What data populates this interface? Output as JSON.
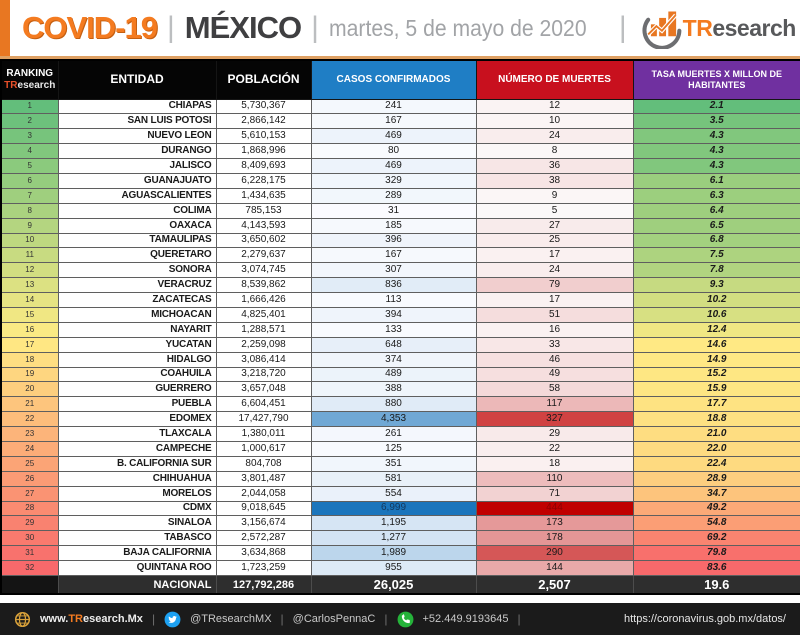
{
  "header": {
    "title": "COVID-19",
    "subtitle": "MÉXICO",
    "date": "martes, 5 de mayo de 2020",
    "separator": "|",
    "brand_prefix": "TR",
    "brand_suffix": "esearch",
    "accent_color": "#E87722"
  },
  "table": {
    "header": {
      "ranking_line1": "RANKING",
      "ranking_brand_prefix": "TR",
      "ranking_brand_suffix": "esearch",
      "entidad": "ENTIDAD",
      "poblacion": "POBLACIÓN",
      "casos": "CASOS CONFIRMADOS",
      "muertes": "NÚMERO DE MUERTES",
      "tasa": "TASA MUERTES X MILLON DE HABITANTES"
    },
    "header_colors": {
      "dark": "#050505",
      "casos_blue": "#1F7EC5",
      "muertes_red": "#C8101E",
      "tasa_purple": "#7030A0"
    },
    "rows": [
      {
        "rank": "1",
        "entidad": "CHIAPAS",
        "poblacion": "5,730,367",
        "casos": "241",
        "muertes": "12",
        "tasa": "2.1",
        "colors": {
          "rank": "#63BE7B",
          "casos": "#F4F8FD",
          "muertes": "#FAF3F3",
          "tasa": "#63BE7B"
        }
      },
      {
        "rank": "2",
        "entidad": "SAN LUIS POTOSI",
        "poblacion": "2,866,142",
        "casos": "167",
        "muertes": "10",
        "tasa": "3.5",
        "colors": {
          "rank": "#6DC17C",
          "casos": "#F6F9FD",
          "muertes": "#FBF5F5",
          "tasa": "#76C47C"
        }
      },
      {
        "rank": "3",
        "entidad": "NUEVO LEON",
        "poblacion": "5,610,153",
        "casos": "469",
        "muertes": "24",
        "tasa": "4.3",
        "colors": {
          "rank": "#77C47C",
          "casos": "#EDF3FB",
          "muertes": "#F9EDED",
          "tasa": "#81C77D"
        }
      },
      {
        "rank": "4",
        "entidad": "DURANGO",
        "poblacion": "1,868,996",
        "casos": "80",
        "muertes": "8",
        "tasa": "4.3",
        "colors": {
          "rank": "#81C77D",
          "casos": "#F9FBFE",
          "muertes": "#FBF7F7",
          "tasa": "#81C77D"
        }
      },
      {
        "rank": "5",
        "entidad": "JALISCO",
        "poblacion": "8,409,693",
        "casos": "469",
        "muertes": "36",
        "tasa": "4.3",
        "colors": {
          "rank": "#8BCA7D",
          "casos": "#EDF3FB",
          "muertes": "#F7E6E6",
          "tasa": "#81C77D"
        }
      },
      {
        "rank": "6",
        "entidad": "GUANAJUATO",
        "poblacion": "6,228,175",
        "casos": "329",
        "muertes": "38",
        "tasa": "6.1",
        "colors": {
          "rank": "#95CD7E",
          "casos": "#F1F6FC",
          "muertes": "#F7E5E5",
          "tasa": "#9ACE7E"
        }
      },
      {
        "rank": "7",
        "entidad": "AGUASCALIENTES",
        "poblacion": "1,434,635",
        "casos": "289",
        "muertes": "9",
        "tasa": "6.3",
        "colors": {
          "rank": "#9FCF7E",
          "casos": "#F2F7FC",
          "muertes": "#FBF6F6",
          "tasa": "#9CCF7E"
        }
      },
      {
        "rank": "8",
        "entidad": "COLIMA",
        "poblacion": "785,153",
        "casos": "31",
        "muertes": "5",
        "tasa": "6.4",
        "colors": {
          "rank": "#AAD27F",
          "casos": "#FBFBFF",
          "muertes": "#FBF8F8",
          "tasa": "#9ECF7E"
        }
      },
      {
        "rank": "9",
        "entidad": "OAXACA",
        "poblacion": "4,143,593",
        "casos": "185",
        "muertes": "27",
        "tasa": "6.5",
        "colors": {
          "rank": "#B4D580",
          "casos": "#F6F9FD",
          "muertes": "#F8EBEB",
          "tasa": "#9FCF7E"
        }
      },
      {
        "rank": "10",
        "entidad": "TAMAULIPAS",
        "poblacion": "3,650,602",
        "casos": "396",
        "muertes": "25",
        "tasa": "6.8",
        "colors": {
          "rank": "#BED880",
          "casos": "#EFF4FB",
          "muertes": "#F9ECEC",
          "tasa": "#A3D17F"
        }
      },
      {
        "rank": "11",
        "entidad": "QUERETARO",
        "poblacion": "2,279,637",
        "casos": "167",
        "muertes": "17",
        "tasa": "7.5",
        "colors": {
          "rank": "#C8DB81",
          "casos": "#F6F9FD",
          "muertes": "#FAF1F1",
          "tasa": "#ADD37F"
        }
      },
      {
        "rank": "12",
        "entidad": "SONORA",
        "poblacion": "3,074,745",
        "casos": "307",
        "muertes": "24",
        "tasa": "7.8",
        "colors": {
          "rank": "#D2DE81",
          "casos": "#F2F6FC",
          "muertes": "#F9EDED",
          "tasa": "#B1D480"
        }
      },
      {
        "rank": "13",
        "entidad": "VERACRUZ",
        "poblacion": "8,539,862",
        "casos": "836",
        "muertes": "79",
        "tasa": "9.3",
        "colors": {
          "rank": "#DCE182",
          "casos": "#E1ECF7",
          "muertes": "#F1CECE",
          "tasa": "#C6DA81"
        }
      },
      {
        "rank": "14",
        "entidad": "ZACATECAS",
        "poblacion": "1,666,426",
        "casos": "113",
        "muertes": "17",
        "tasa": "10.2",
        "colors": {
          "rank": "#E6E483",
          "casos": "#F8FAFE",
          "muertes": "#FAF1F1",
          "tasa": "#D2DE81"
        }
      },
      {
        "rank": "15",
        "entidad": "MICHOACAN",
        "poblacion": "4,825,401",
        "casos": "394",
        "muertes": "51",
        "tasa": "10.6",
        "colors": {
          "rank": "#F0E783",
          "casos": "#EFF4FB",
          "muertes": "#F5DDDD",
          "tasa": "#D7E082"
        }
      },
      {
        "rank": "16",
        "entidad": "NAYARIT",
        "poblacion": "1,288,571",
        "casos": "133",
        "muertes": "16",
        "tasa": "12.4",
        "colors": {
          "rank": "#FAEA84",
          "casos": "#F8FAFE",
          "muertes": "#FAF1F1",
          "tasa": "#F0E783"
        }
      },
      {
        "rank": "17",
        "entidad": "YUCATAN",
        "poblacion": "2,259,098",
        "casos": "648",
        "muertes": "33",
        "tasa": "14.6",
        "colors": {
          "rank": "#FFE783",
          "casos": "#E7EFF9",
          "muertes": "#F8E7E7",
          "tasa": "#FFE984"
        }
      },
      {
        "rank": "18",
        "entidad": "HIDALGO",
        "poblacion": "3,086,414",
        "casos": "374",
        "muertes": "46",
        "tasa": "14.9",
        "colors": {
          "rank": "#FEDE82",
          "casos": "#F0F5FB",
          "muertes": "#F6E0E0",
          "tasa": "#FFE884"
        }
      },
      {
        "rank": "19",
        "entidad": "COAHUILA",
        "poblacion": "3,218,720",
        "casos": "489",
        "muertes": "49",
        "tasa": "15.2",
        "colors": {
          "rank": "#FED680",
          "casos": "#ECF3FA",
          "muertes": "#F6DFDF",
          "tasa": "#FEE783"
        }
      },
      {
        "rank": "20",
        "entidad": "GUERRERO",
        "poblacion": "3,657,048",
        "casos": "388",
        "muertes": "58",
        "tasa": "15.9",
        "colors": {
          "rank": "#FDCE7E",
          "casos": "#EFF5FB",
          "muertes": "#F4D9D9",
          "tasa": "#FEE683"
        }
      },
      {
        "rank": "21",
        "entidad": "PUEBLA",
        "poblacion": "6,604,451",
        "casos": "880",
        "muertes": "117",
        "tasa": "17.7",
        "colors": {
          "rank": "#FDC57D",
          "casos": "#E0EBF7",
          "muertes": "#ECB8B8",
          "tasa": "#FEE382"
        }
      },
      {
        "rank": "22",
        "entidad": "EDOMEX",
        "poblacion": "17,427,790",
        "casos": "4,353",
        "muertes": "327",
        "tasa": "18.8",
        "colors": {
          "rank": "#FDBD7B",
          "casos": "#70A8D5",
          "muertes": "#D04242",
          "tasa": "#FEE182"
        }
      },
      {
        "rank": "23",
        "entidad": "TLAXCALA",
        "poblacion": "1,380,011",
        "casos": "261",
        "muertes": "29",
        "tasa": "21.0",
        "colors": {
          "rank": "#FCB47A",
          "casos": "#F4F7FD",
          "muertes": "#F8EAEA",
          "tasa": "#FEDD81"
        }
      },
      {
        "rank": "24",
        "entidad": "CAMPECHE",
        "poblacion": "1,000,617",
        "casos": "125",
        "muertes": "22",
        "tasa": "22.0",
        "colors": {
          "rank": "#FCAC78",
          "casos": "#F8FAFE",
          "muertes": "#F9EEEE",
          "tasa": "#FEDB81"
        }
      },
      {
        "rank": "25",
        "entidad": "B. CALIFORNIA SUR",
        "poblacion": "804,708",
        "casos": "351",
        "muertes": "18",
        "tasa": "22.4",
        "colors": {
          "rank": "#FBA476",
          "casos": "#F1F6FC",
          "muertes": "#FAF0F0",
          "tasa": "#FEDA80"
        }
      },
      {
        "rank": "26",
        "entidad": "CHIHUAHUA",
        "poblacion": "3,801,487",
        "casos": "581",
        "muertes": "110",
        "tasa": "28.9",
        "colors": {
          "rank": "#FB9B75",
          "casos": "#E9F1F9",
          "muertes": "#EDBCBC",
          "tasa": "#FDCE7F"
        }
      },
      {
        "rank": "27",
        "entidad": "MORELOS",
        "poblacion": "2,044,058",
        "casos": "554",
        "muertes": "71",
        "tasa": "34.7",
        "colors": {
          "rank": "#FA9373",
          "casos": "#EAF1FA",
          "muertes": "#F2D2D2",
          "tasa": "#FDC47C"
        }
      },
      {
        "rank": "28",
        "entidad": "CDMX",
        "poblacion": "9,018,645",
        "casos": "6,999",
        "muertes": "444",
        "tasa": "49.2",
        "colors": {
          "rank": "#FA8B71",
          "casos": "#1B75BC",
          "muertes": "#C00000",
          "tasa": "#FBA977",
          "casos_text": "#14375C",
          "muertes_text": "#8B0000"
        }
      },
      {
        "rank": "29",
        "entidad": "SINALOA",
        "poblacion": "3,156,674",
        "casos": "1,195",
        "muertes": "173",
        "tasa": "54.8",
        "colors": {
          "rank": "#F98270",
          "casos": "#D6E5F4",
          "muertes": "#E59999",
          "tasa": "#FB9E75"
        }
      },
      {
        "rank": "30",
        "entidad": "TABASCO",
        "poblacion": "2,572,287",
        "casos": "1,277",
        "muertes": "178",
        "tasa": "69.2",
        "colors": {
          "rank": "#F97A6E",
          "casos": "#D3E3F3",
          "muertes": "#E49696",
          "tasa": "#F98470"
        }
      },
      {
        "rank": "31",
        "entidad": "BAJA CALIFORNIA",
        "poblacion": "3,634,868",
        "casos": "1,989",
        "muertes": "290",
        "tasa": "79.8",
        "colors": {
          "rank": "#F8726D",
          "casos": "#BCD6EC",
          "muertes": "#D55757",
          "tasa": "#F8706C"
        }
      },
      {
        "rank": "32",
        "entidad": "QUINTANA ROO",
        "poblacion": "1,723,259",
        "casos": "955",
        "muertes": "144",
        "tasa": "83.6",
        "colors": {
          "rank": "#F8696B",
          "casos": "#DDEAF6",
          "muertes": "#E9A9A9",
          "tasa": "#F8696B"
        }
      }
    ],
    "nacional": {
      "label": "NACIONAL",
      "poblacion": "127,792,286",
      "casos": "26,025",
      "muertes": "2,507",
      "tasa": "19.6"
    }
  },
  "footer": {
    "website_prefix": "www.",
    "website_brand": "TR",
    "website_suffix": "esearch.Mx",
    "twitter_handle_1": "@TResearchMX",
    "twitter_handle_2": "@CarlosPennaC",
    "phone": "+52.449.9193645",
    "source_url": "https://coronavirus.gob.mx/datos/",
    "separator": "|"
  },
  "chart_data": {
    "type": "table",
    "title": "COVID-19 | MÉXICO | martes, 5 de mayo de 2020",
    "columns": [
      "RANKING TResearch",
      "ENTIDAD",
      "POBLACIÓN",
      "CASOS CONFIRMADOS",
      "NÚMERO DE MUERTES",
      "TASA MUERTES X MILLON DE HABITANTES"
    ],
    "rows": [
      [
        1,
        "CHIAPAS",
        5730367,
        241,
        12,
        2.1
      ],
      [
        2,
        "SAN LUIS POTOSI",
        2866142,
        167,
        10,
        3.5
      ],
      [
        3,
        "NUEVO LEON",
        5610153,
        469,
        24,
        4.3
      ],
      [
        4,
        "DURANGO",
        1868996,
        80,
        8,
        4.3
      ],
      [
        5,
        "JALISCO",
        8409693,
        469,
        36,
        4.3
      ],
      [
        6,
        "GUANAJUATO",
        6228175,
        329,
        38,
        6.1
      ],
      [
        7,
        "AGUASCALIENTES",
        1434635,
        289,
        9,
        6.3
      ],
      [
        8,
        "COLIMA",
        785153,
        31,
        5,
        6.4
      ],
      [
        9,
        "OAXACA",
        4143593,
        185,
        27,
        6.5
      ],
      [
        10,
        "TAMAULIPAS",
        3650602,
        396,
        25,
        6.8
      ],
      [
        11,
        "QUERETARO",
        2279637,
        167,
        17,
        7.5
      ],
      [
        12,
        "SONORA",
        3074745,
        307,
        24,
        7.8
      ],
      [
        13,
        "VERACRUZ",
        8539862,
        836,
        79,
        9.3
      ],
      [
        14,
        "ZACATECAS",
        1666426,
        113,
        17,
        10.2
      ],
      [
        15,
        "MICHOACAN",
        4825401,
        394,
        51,
        10.6
      ],
      [
        16,
        "NAYARIT",
        1288571,
        133,
        16,
        12.4
      ],
      [
        17,
        "YUCATAN",
        2259098,
        648,
        33,
        14.6
      ],
      [
        18,
        "HIDALGO",
        3086414,
        374,
        46,
        14.9
      ],
      [
        19,
        "COAHUILA",
        3218720,
        489,
        49,
        15.2
      ],
      [
        20,
        "GUERRERO",
        3657048,
        388,
        58,
        15.9
      ],
      [
        21,
        "PUEBLA",
        6604451,
        880,
        117,
        17.7
      ],
      [
        22,
        "EDOMEX",
        17427790,
        4353,
        327,
        18.8
      ],
      [
        23,
        "TLAXCALA",
        1380011,
        261,
        29,
        21.0
      ],
      [
        24,
        "CAMPECHE",
        1000617,
        125,
        22,
        22.0
      ],
      [
        25,
        "B. CALIFORNIA SUR",
        804708,
        351,
        18,
        22.4
      ],
      [
        26,
        "CHIHUAHUA",
        3801487,
        581,
        110,
        28.9
      ],
      [
        27,
        "MORELOS",
        2044058,
        554,
        71,
        34.7
      ],
      [
        28,
        "CDMX",
        9018645,
        6999,
        444,
        49.2
      ],
      [
        29,
        "SINALOA",
        3156674,
        1195,
        173,
        54.8
      ],
      [
        30,
        "TABASCO",
        2572287,
        1277,
        178,
        69.2
      ],
      [
        31,
        "BAJA CALIFORNIA",
        3634868,
        1989,
        290,
        79.8
      ],
      [
        32,
        "QUINTANA ROO",
        1723259,
        955,
        144,
        83.6
      ]
    ],
    "total_row": [
      "",
      "NACIONAL",
      127792286,
      26025,
      2507,
      19.6
    ]
  }
}
